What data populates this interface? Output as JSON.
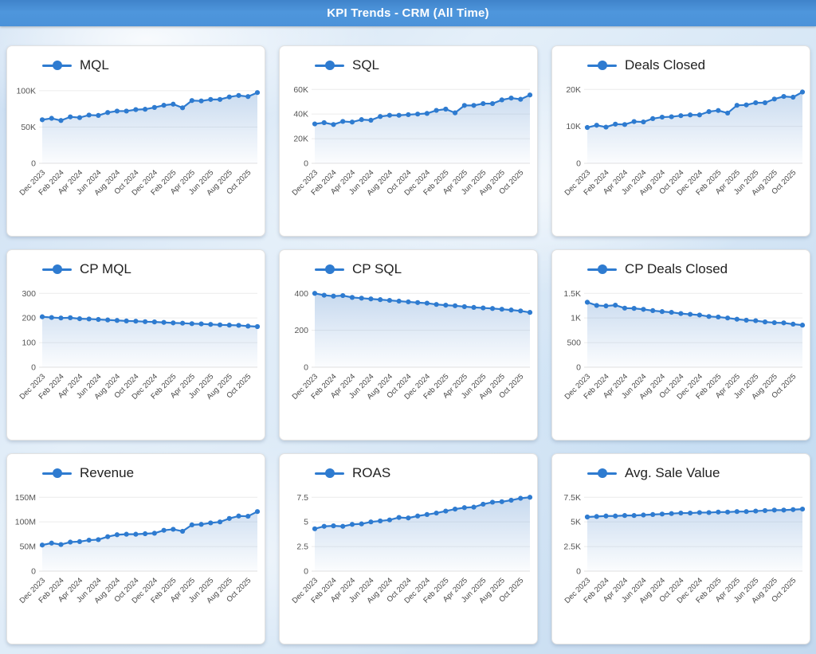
{
  "header": {
    "title": "KPI Trends - CRM (All Time)"
  },
  "colors": {
    "accent": "#2e7bd0",
    "area_fill": "#7fa9da",
    "grid": "#ececec",
    "zero_line": "#e0e0e0",
    "header_blue": "#4b92d9"
  },
  "months": [
    "Dec 2023",
    "Jan 2024",
    "Feb 2024",
    "Mar 2024",
    "Apr 2024",
    "May 2024",
    "Jun 2024",
    "Jul 2024",
    "Aug 2024",
    "Sep 2024",
    "Oct 2024",
    "Nov 2024",
    "Dec 2024",
    "Jan 2025",
    "Feb 2025",
    "Mar 2025",
    "Apr 2025",
    "May 2025",
    "Jun 2025",
    "Jul 2025",
    "Aug 2025",
    "Sep 2025",
    "Oct 2025",
    "Nov 2025"
  ],
  "x_tick_every": 2,
  "x_tick_labels": [
    "Dec 2023",
    "Feb 2024",
    "Apr 2024",
    "Jun 2024",
    "Aug 2024",
    "Oct 2024",
    "Dec 2024",
    "Feb 2025",
    "Apr 2025",
    "Jun 2025",
    "Aug 2025",
    "Oct 2025"
  ],
  "chart_data": [
    {
      "type": "line",
      "title": "MQL",
      "legend_position": "top-left",
      "grid": true,
      "y_ticks": [
        0,
        50,
        100
      ],
      "y_tick_labels": [
        "0",
        "50K",
        "100K"
      ],
      "ymax": 112,
      "unit": "K",
      "values": [
        60,
        62,
        59,
        64,
        63,
        66.5,
        66,
        70,
        72,
        72,
        74,
        74.5,
        77,
        80,
        81.5,
        76.5,
        86.5,
        86,
        88,
        88,
        91.5,
        93.5,
        92,
        97.5
      ]
    },
    {
      "type": "line",
      "title": "SQL",
      "legend_position": "top-left",
      "grid": true,
      "y_ticks": [
        0,
        20,
        40,
        60
      ],
      "y_tick_labels": [
        "0",
        "20K",
        "40K",
        "60K"
      ],
      "ymax": 66,
      "unit": "K",
      "values": [
        32,
        33,
        31.5,
        34,
        33.5,
        35.5,
        35,
        38,
        39,
        39,
        39.5,
        40,
        40.5,
        43,
        44,
        41,
        47,
        47,
        48.5,
        48.5,
        51.5,
        53,
        52,
        55.5
      ]
    },
    {
      "type": "line",
      "title": "Deals Closed",
      "legend_position": "top-left",
      "grid": true,
      "y_ticks": [
        0,
        10,
        20
      ],
      "y_tick_labels": [
        "0",
        "10K",
        "20K"
      ],
      "ymax": 22,
      "unit": "K",
      "values": [
        9.7,
        10.3,
        9.8,
        10.6,
        10.5,
        11.3,
        11.2,
        12.1,
        12.5,
        12.6,
        12.9,
        13.1,
        13.1,
        14.0,
        14.3,
        13.6,
        15.7,
        15.8,
        16.4,
        16.4,
        17.4,
        18.1,
        17.9,
        19.3
      ]
    },
    {
      "type": "line",
      "title": "CP MQL",
      "legend_position": "top-left",
      "grid": true,
      "y_ticks": [
        0,
        100,
        200,
        300
      ],
      "y_tick_labels": [
        "0",
        "100",
        "200",
        "300"
      ],
      "ymax": 330,
      "unit": "",
      "values": [
        205,
        202,
        200,
        201,
        197,
        196,
        194,
        192,
        190,
        188,
        187,
        185,
        184,
        182,
        180,
        179,
        177,
        176,
        174,
        172,
        171,
        170,
        167,
        165
      ]
    },
    {
      "type": "line",
      "title": "CP SQL",
      "legend_position": "top-left",
      "grid": true,
      "y_ticks": [
        0,
        200,
        400
      ],
      "y_tick_labels": [
        "0",
        "200",
        "400"
      ],
      "ymax": 440,
      "unit": "",
      "values": [
        400,
        390,
        385,
        388,
        378,
        374,
        370,
        366,
        362,
        358,
        354,
        350,
        347,
        340,
        336,
        333,
        328,
        324,
        321,
        318,
        314,
        310,
        305,
        297
      ]
    },
    {
      "type": "line",
      "title": "CP Deals Closed",
      "legend_position": "top-left",
      "grid": true,
      "y_ticks": [
        0,
        500,
        1000,
        1500
      ],
      "y_tick_labels": [
        "0",
        "500",
        "1K",
        "1.5K"
      ],
      "ymax": 1650,
      "unit": "",
      "values": [
        1320,
        1255,
        1245,
        1260,
        1200,
        1195,
        1175,
        1150,
        1130,
        1115,
        1090,
        1075,
        1060,
        1030,
        1020,
        1000,
        975,
        955,
        945,
        920,
        905,
        900,
        875,
        855
      ]
    },
    {
      "type": "line",
      "title": "Revenue",
      "legend_position": "top-left",
      "grid": true,
      "y_ticks": [
        0,
        50,
        100,
        150
      ],
      "y_tick_labels": [
        "0",
        "50M",
        "100M",
        "150M"
      ],
      "ymax": 165,
      "unit": "M",
      "values": [
        53,
        57,
        54,
        59,
        60,
        63,
        64,
        70,
        74,
        75,
        75,
        76,
        77,
        83,
        85,
        81,
        94,
        95,
        98,
        100,
        107,
        112,
        111.5,
        121
      ]
    },
    {
      "type": "line",
      "title": "ROAS",
      "legend_position": "top-left",
      "grid": true,
      "y_ticks": [
        0,
        2.5,
        5,
        7.5
      ],
      "y_tick_labels": [
        "0",
        "2.5",
        "5",
        "7.5"
      ],
      "ymax": 8.25,
      "unit": "",
      "values": [
        4.3,
        4.55,
        4.6,
        4.55,
        4.75,
        4.8,
        5.0,
        5.1,
        5.2,
        5.45,
        5.4,
        5.6,
        5.75,
        5.9,
        6.1,
        6.3,
        6.45,
        6.5,
        6.8,
        7.0,
        7.05,
        7.2,
        7.4,
        7.5
      ]
    },
    {
      "type": "line",
      "title": "Avg. Sale Value",
      "legend_position": "top-left",
      "grid": true,
      "y_ticks": [
        0,
        2.5,
        5,
        7.5
      ],
      "y_tick_labels": [
        "0",
        "2.5K",
        "5K",
        "7.5K"
      ],
      "ymax": 8.25,
      "unit": "K",
      "values": [
        5.5,
        5.55,
        5.6,
        5.6,
        5.65,
        5.65,
        5.7,
        5.75,
        5.8,
        5.85,
        5.9,
        5.9,
        5.95,
        5.95,
        6.0,
        6.0,
        6.05,
        6.05,
        6.1,
        6.15,
        6.2,
        6.2,
        6.25,
        6.3
      ]
    }
  ]
}
